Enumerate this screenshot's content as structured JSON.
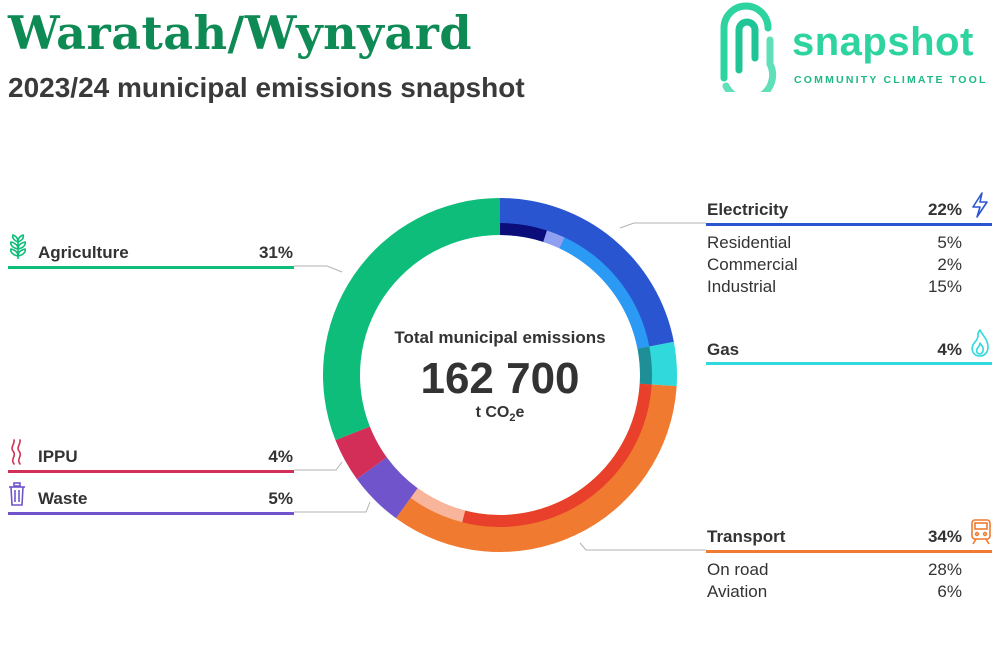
{
  "header": {
    "title": "Waratah/Wynyard",
    "subtitle": "2023/24 municipal emissions snapshot"
  },
  "brand": {
    "name": "snapshot",
    "tagline": "COMMUNITY CLIMATE TOOL",
    "color": "#2dd4a0"
  },
  "center": {
    "label": "Total municipal emissions",
    "total": "162 700",
    "unit_prefix": "t CO",
    "unit_sub": "2",
    "unit_suffix": "e"
  },
  "chart_data": {
    "type": "pie",
    "variant": "donut",
    "total": 162700,
    "unit": "t CO2e",
    "categories": [
      {
        "name": "Electricity",
        "percent": 22,
        "percent_label": "22%",
        "color": "#2a55d1",
        "icon": "lightning-icon",
        "subcategories": [
          {
            "name": "Residential",
            "percent": 5,
            "percent_label": "5%",
            "color": "#0b0e7a"
          },
          {
            "name": "Commercial",
            "percent": 2,
            "percent_label": "2%",
            "color": "#8fa0f0"
          },
          {
            "name": "Industrial",
            "percent": 15,
            "percent_label": "15%",
            "color": "#2a9af5"
          }
        ]
      },
      {
        "name": "Gas",
        "percent": 4,
        "percent_label": "4%",
        "color": "#2fd9dc",
        "icon": "flame-icon",
        "subcategories": [
          {
            "name": "",
            "percent": 4,
            "percent_label": "",
            "color": "#1e8e97"
          }
        ]
      },
      {
        "name": "Transport",
        "percent": 34,
        "percent_label": "34%",
        "color": "#f07a30",
        "icon": "train-icon",
        "subcategories": [
          {
            "name": "On road",
            "percent": 28,
            "percent_label": "28%",
            "color": "#e8402a"
          },
          {
            "name": "Aviation",
            "percent": 6,
            "percent_label": "6%",
            "color": "#f8b59b"
          }
        ]
      },
      {
        "name": "Waste",
        "percent": 5,
        "percent_label": "5%",
        "color": "#7054cc",
        "icon": "bin-icon",
        "subcategories": []
      },
      {
        "name": "IPPU",
        "percent": 4,
        "percent_label": "4%",
        "color": "#d22e58",
        "icon": "fumes-icon",
        "subcategories": []
      },
      {
        "name": "Agriculture",
        "percent": 31,
        "percent_label": "31%",
        "color": "#0ebd7a",
        "icon": "plant-icon",
        "subcategories": []
      }
    ]
  }
}
